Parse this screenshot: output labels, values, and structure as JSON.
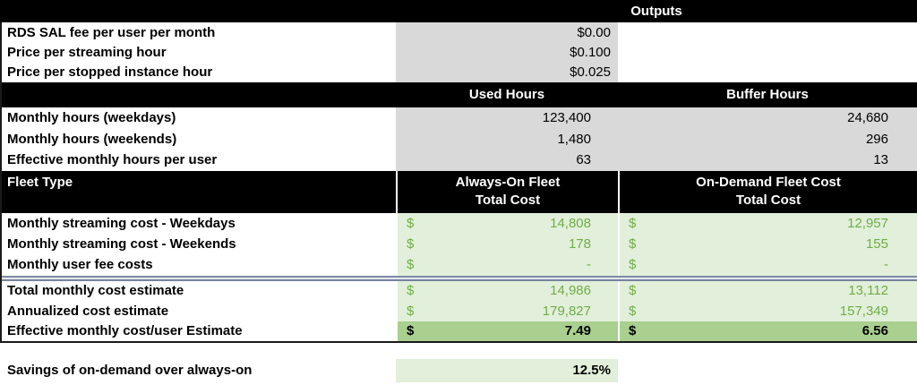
{
  "colors": {
    "header_bg": "#000000",
    "header_text": "#ffffff",
    "input_cell_bg": "#d9d9d9",
    "result_cell_bg": "#e2efda",
    "highlight_cell_bg": "#a9d08e",
    "result_text_green": "#70ad47"
  },
  "outputs": {
    "title": "Outputs",
    "rows": [
      {
        "label": "RDS SAL fee per user per month",
        "value": "$0.00"
      },
      {
        "label": "Price per streaming hour",
        "value": "$0.100"
      },
      {
        "label": "Price per stopped instance hour",
        "value": "$0.025"
      }
    ]
  },
  "hours": {
    "used_header": "Used Hours",
    "buffer_header": "Buffer Hours",
    "rows": [
      {
        "label": "Monthly hours (weekdays)",
        "used": "123,400",
        "buffer": "24,680"
      },
      {
        "label": "Monthly hours (weekends)",
        "used": "1,480",
        "buffer": "296"
      },
      {
        "label": "Effective monthly hours per user",
        "used": "63",
        "buffer": "13"
      }
    ]
  },
  "fleet": {
    "row_header": "Fleet Type",
    "currency_symbol": "$",
    "always_on_header_line1": "Always-On Fleet",
    "always_on_header_line2": "Total Cost",
    "on_demand_header_line1": "On-Demand Fleet Cost",
    "on_demand_header_line2": "Total Cost",
    "cost_rows": [
      {
        "label": "Monthly streaming cost - Weekdays",
        "always_on": "14,808",
        "on_demand": "12,957"
      },
      {
        "label": "Monthly streaming cost - Weekends",
        "always_on": "178",
        "on_demand": "155"
      },
      {
        "label": "Monthly user fee costs",
        "always_on": "-",
        "on_demand": "-"
      }
    ],
    "summary_rows": [
      {
        "label": "Total monthly cost estimate",
        "always_on": "14,986",
        "on_demand": "13,112"
      },
      {
        "label": "Annualized cost estimate",
        "always_on": "179,827",
        "on_demand": "157,349"
      }
    ],
    "highlight_row": {
      "label": "Effective monthly cost/user Estimate",
      "always_on": "7.49",
      "on_demand": "6.56"
    }
  },
  "savings": {
    "label": "Savings of on-demand over always-on",
    "value": "12.5%"
  }
}
